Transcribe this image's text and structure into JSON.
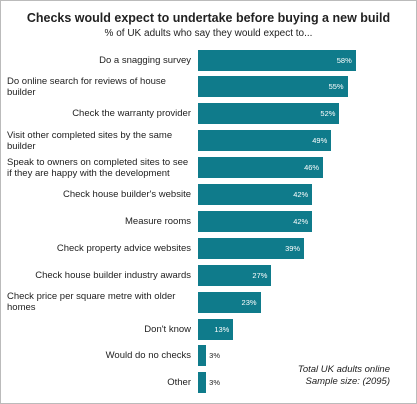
{
  "chart_data": {
    "type": "bar",
    "orientation": "horizontal",
    "title": "Checks would expect to undertake before buying a new build",
    "subtitle": "% of UK adults who say they would expect to...",
    "categories": [
      "Do a snagging survey",
      "Do online search for reviews of house builder",
      "Check the warranty provider",
      "Visit other completed sites by the same builder",
      "Speak to owners on completed sites to see if they are happy with the development",
      "Check house builder's website",
      "Measure rooms",
      "Check property advice websites",
      "Check house builder industry awards",
      "Check price per square metre with older homes",
      "Don't know",
      "Would do no checks",
      "Other"
    ],
    "values": [
      58,
      55,
      52,
      49,
      46,
      42,
      42,
      39,
      27,
      23,
      13,
      3,
      3
    ],
    "value_labels": [
      "58%",
      "55%",
      "52%",
      "49%",
      "46%",
      "42%",
      "42%",
      "39%",
      "27%",
      "23%",
      "13%",
      "3%",
      "3%"
    ],
    "color": "#0f7b8b",
    "note": [
      "Total UK adults online",
      "Sample size:  (2095)"
    ]
  }
}
